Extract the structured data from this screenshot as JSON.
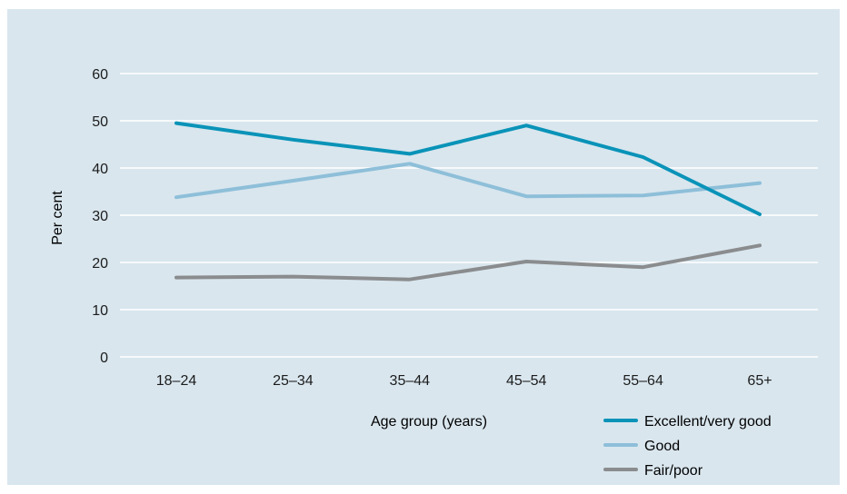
{
  "chart_data": {
    "type": "line",
    "xlabel": "Age group (years)",
    "ylabel": "Per cent",
    "ylim": [
      0,
      60
    ],
    "yticks": [
      "0",
      "10",
      "20",
      "30",
      "40",
      "50",
      "60"
    ],
    "categories": [
      "18–24",
      "25–34",
      "35–44",
      "45–54",
      "55–64",
      "65+"
    ],
    "grid": true,
    "legend_position": "bottom-right",
    "series": [
      {
        "name": "Excellent/very good",
        "color": "#0a93b8",
        "values": [
          49.5,
          46,
          43,
          49,
          42.3,
          30.2
        ]
      },
      {
        "name": "Good",
        "color": "#8ebfd9",
        "values": [
          33.8,
          37.3,
          40.9,
          34,
          34.2,
          36.8
        ]
      },
      {
        "name": "Fair/poor",
        "color": "#8a8c8e",
        "values": [
          16.8,
          17,
          16.4,
          20.2,
          19,
          23.6
        ]
      }
    ]
  }
}
